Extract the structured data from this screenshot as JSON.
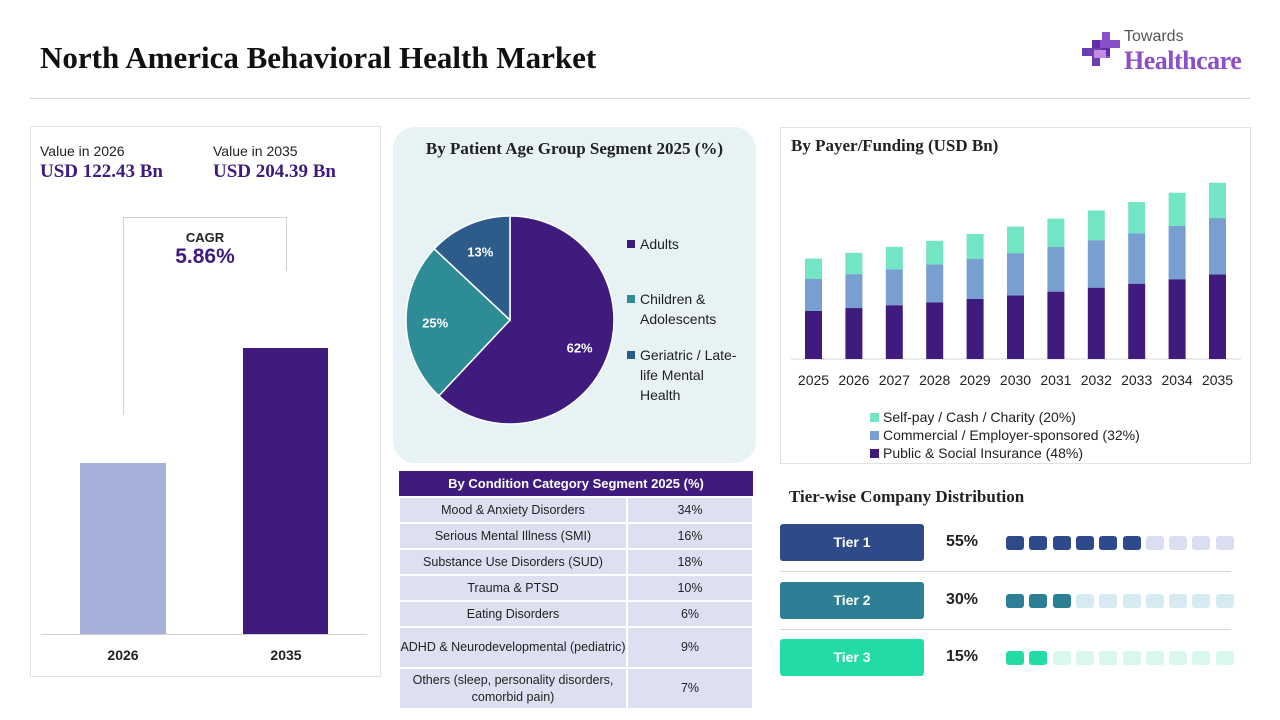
{
  "header": {
    "title": "North America Behavioral Health Market",
    "brand_top": "Towards",
    "brand_main": "Healthcare"
  },
  "colors": {
    "primary": "#3f1b7e",
    "bar_2026": "#a6b1db",
    "pie": [
      "#3f1b7e",
      "#2e8c96",
      "#2d5b8a"
    ],
    "payer": [
      "#3f1b7e",
      "#779fd0",
      "#72e6c4"
    ],
    "tiers": [
      "#2e4a8a",
      "#2c7f95",
      "#23dba6"
    ],
    "tier_empty": [
      "#d9def1",
      "#d5eaf1",
      "#d9f7ee"
    ]
  },
  "market_value": {
    "label_2026": "Value in 2026",
    "value_2026": "USD 122.43 Bn",
    "label_2035": "Value in 2035",
    "value_2035": "USD 204.39 Bn",
    "cagr_label": "CAGR",
    "cagr_value": "5.86%"
  },
  "condition_table": {
    "header": "By Condition Category Segment 2025 (%)",
    "rows": [
      {
        "name": "Mood & Anxiety Disorders",
        "value": "34%"
      },
      {
        "name": "Serious Mental Illness (SMI)",
        "value": "16%"
      },
      {
        "name": "Substance Use Disorders (SUD)",
        "value": "18%"
      },
      {
        "name": "Trauma & PTSD",
        "value": "10%"
      },
      {
        "name": "Eating Disorders",
        "value": "6%"
      },
      {
        "name": "ADHD & Neurodevelopmental (pediatric)",
        "value": "9%"
      },
      {
        "name": "Others (sleep, personality disorders, comorbid pain)",
        "value": "7%"
      }
    ]
  },
  "tiers": {
    "title": "Tier-wise Company Distribution",
    "items": [
      {
        "label": "Tier 1",
        "pct": "55%",
        "value": 55
      },
      {
        "label": "Tier 2",
        "pct": "30%",
        "value": 30
      },
      {
        "label": "Tier 3",
        "pct": "15%",
        "value": 15
      }
    ]
  },
  "chart_data": [
    {
      "type": "bar",
      "categories": [
        "2026",
        "2035"
      ],
      "values": [
        122.43,
        204.39
      ],
      "title": "",
      "xlabel": "",
      "ylabel": "",
      "ylim": [
        0,
        250
      ]
    },
    {
      "type": "pie",
      "title": "By Patient Age Group Segment 2025 (%)",
      "labels": [
        "Adults",
        "Children & Adolescents",
        "Geriatric / Late-life Mental Health"
      ],
      "legend_lines": [
        [
          "Adults"
        ],
        [
          "Children &",
          "Adolescents"
        ],
        [
          "Geriatric / Late-",
          "life Mental",
          "Health"
        ]
      ],
      "values": [
        62,
        25,
        13
      ],
      "data_labels": [
        "62%",
        "25%",
        "13%"
      ],
      "legend": "right"
    },
    {
      "type": "bar",
      "stacked": true,
      "title": "By Payer/Funding (USD Bn)",
      "categories": [
        "2025",
        "2026",
        "2027",
        "2028",
        "2029",
        "2030",
        "2031",
        "2032",
        "2033",
        "2034",
        "2035"
      ],
      "series": [
        {
          "name": "Public & Social Insurance (48%)",
          "values": [
            55.8,
            59.0,
            62.3,
            65.7,
            69.5,
            73.6,
            78.0,
            82.6,
            87.2,
            92.4,
            97.9
          ]
        },
        {
          "name": "Commercial / Employer-sponsored (32%)",
          "values": [
            37.2,
            39.3,
            41.6,
            43.8,
            46.3,
            49.0,
            52.0,
            55.0,
            58.2,
            61.6,
            65.3
          ]
        },
        {
          "name": "Self-pay / Cash / Charity (20%)",
          "values": [
            23.3,
            24.6,
            26.0,
            27.4,
            28.9,
            30.7,
            32.5,
            34.4,
            36.4,
            38.5,
            40.8
          ]
        }
      ],
      "legend_order": [
        "Self-pay / Cash / Charity (20%)",
        "Commercial / Employer-sponsored (32%)",
        "Public & Social Insurance (48%)"
      ],
      "ylim": [
        0,
        220
      ],
      "legend": "bottom"
    }
  ]
}
